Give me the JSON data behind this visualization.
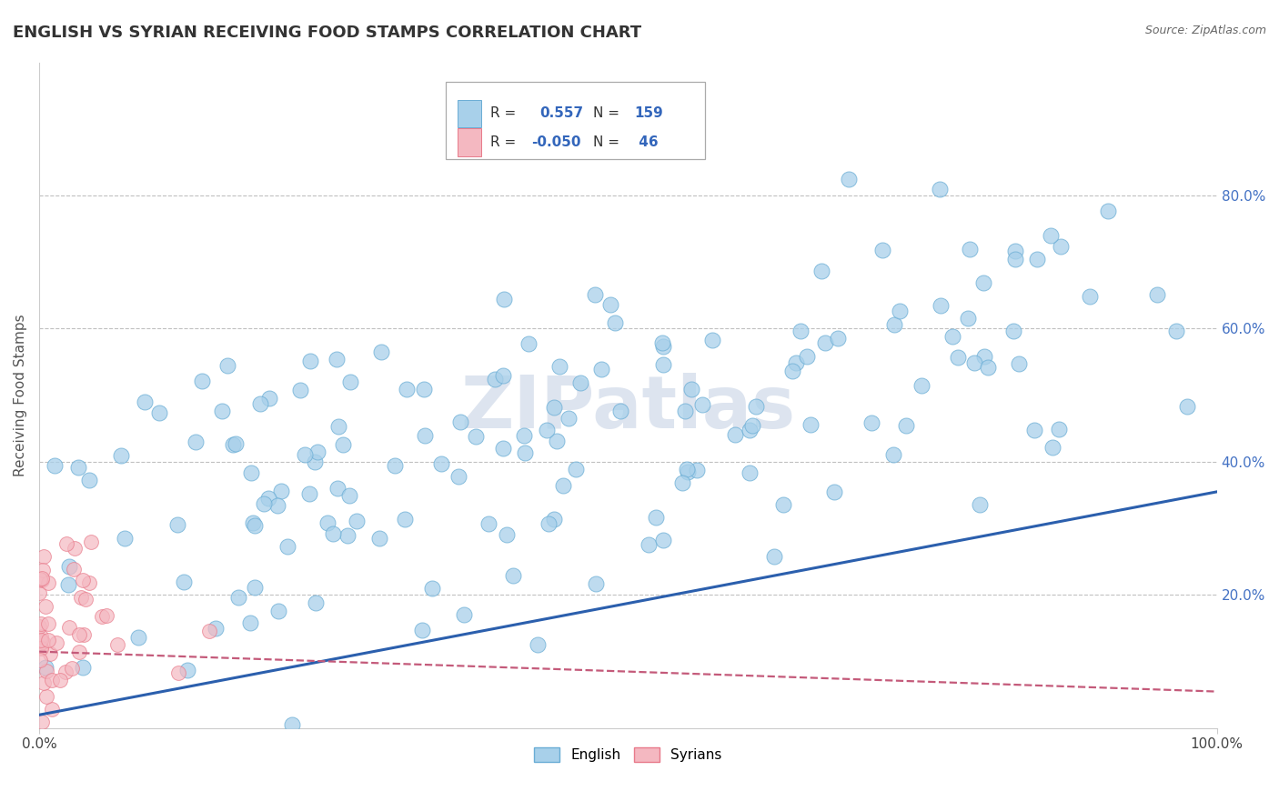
{
  "title": "ENGLISH VS SYRIAN RECEIVING FOOD STAMPS CORRELATION CHART",
  "source": "Source: ZipAtlas.com",
  "ylabel": "Receiving Food Stamps",
  "xlabel": "",
  "xlim": [
    0,
    1.0
  ],
  "ylim": [
    0,
    1.0
  ],
  "english_R": 0.557,
  "english_N": 159,
  "syrian_R": -0.05,
  "syrian_N": 46,
  "english_color": "#a8d0ea",
  "english_edge_color": "#6aadd5",
  "syrian_color": "#f4b8c1",
  "syrian_edge_color": "#e87a8a",
  "english_line_color": "#2b5fad",
  "syrian_line_color": "#c45a7a",
  "background_color": "#ffffff",
  "grid_color": "#c0c0c0",
  "watermark": "ZIPatlas",
  "watermark_color": "#dde4ef",
  "title_fontsize": 13,
  "axis_label_color": "#555555",
  "tick_color_right": "#4472c4",
  "legend_label_english": "English",
  "legend_label_syrian": "Syrians",
  "english_trend_start_y": 0.02,
  "english_trend_end_y": 0.355,
  "syrian_trend_start_y": 0.115,
  "syrian_trend_end_y": 0.055
}
